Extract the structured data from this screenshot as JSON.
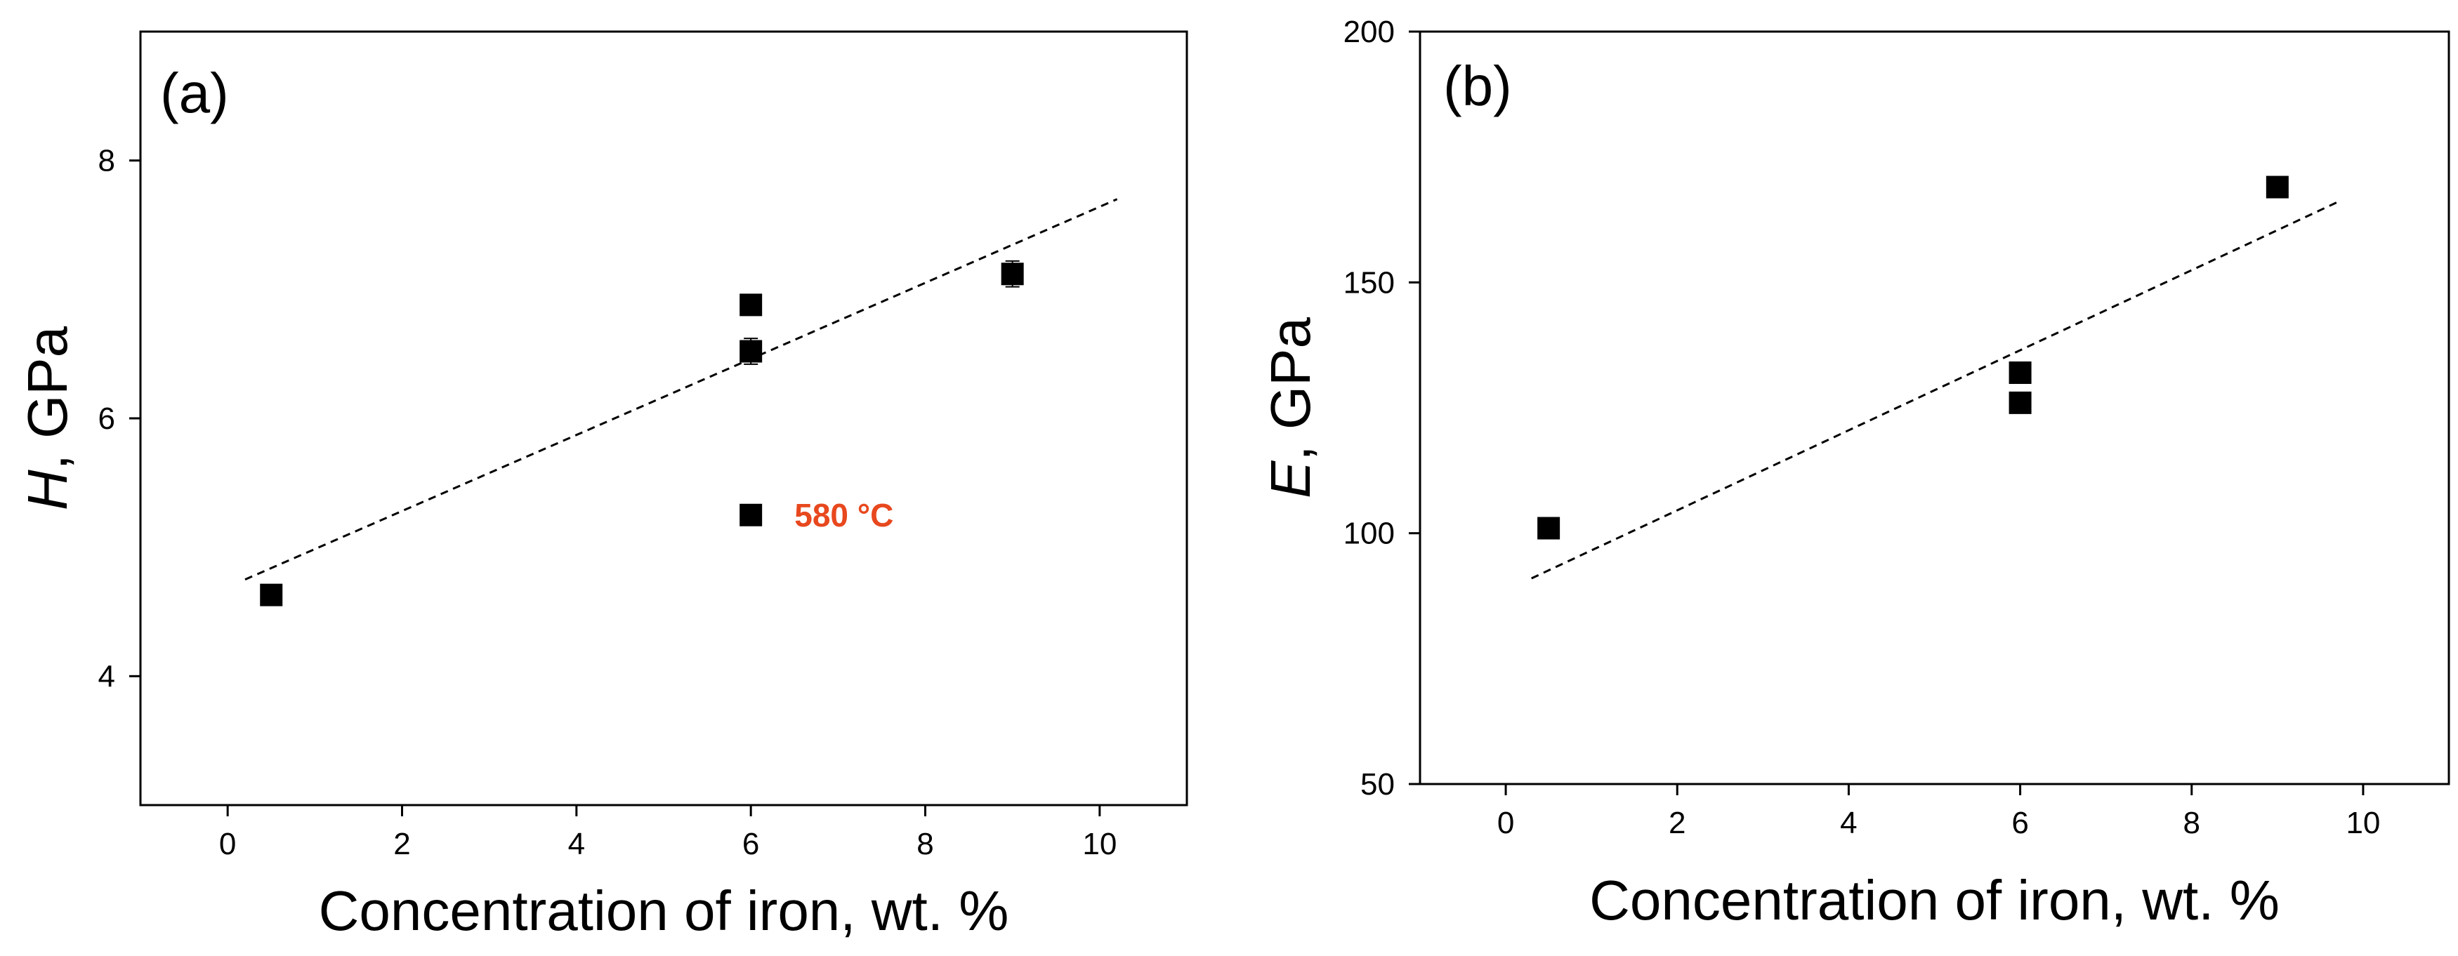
{
  "chart_data": [
    {
      "type": "scatter",
      "panel_label": "(a)",
      "ylabel_symbol": "H",
      "ylabel_rest": ", GPa",
      "xlabel": "Concentration of iron, wt. %",
      "xlim": [
        -1,
        11
      ],
      "ylim": [
        3,
        9
      ],
      "xticks": [
        "0",
        "2",
        "4",
        "6",
        "8",
        "10"
      ],
      "yticks": [
        "4",
        "6",
        "8"
      ],
      "points": [
        {
          "x": 0.5,
          "y": 4.63,
          "err": 0
        },
        {
          "x": 6,
          "y": 6.88,
          "err": 0
        },
        {
          "x": 6,
          "y": 6.52,
          "err": 0.1
        },
        {
          "x": 9,
          "y": 7.12,
          "err": 0.1
        },
        {
          "x": 6,
          "y": 5.25,
          "err": 0
        }
      ],
      "trendline": {
        "x": [
          0.2,
          10.2
        ],
        "y": [
          4.75,
          7.7
        ],
        "style": "dashed"
      },
      "annotations": [
        {
          "text": "580 °C",
          "x": 6.5,
          "y": 5.25,
          "color": "#e8481e"
        }
      ]
    },
    {
      "type": "scatter",
      "panel_label": "(b)",
      "ylabel_symbol": "E",
      "ylabel_rest": ", GPa",
      "xlabel": "Concentration of iron, wt. %",
      "xlim": [
        -1,
        11
      ],
      "ylim": [
        50,
        200
      ],
      "xticks": [
        "0",
        "2",
        "4",
        "6",
        "8",
        "10"
      ],
      "yticks": [
        "50",
        "100",
        "150",
        "200"
      ],
      "points": [
        {
          "x": 0.5,
          "y": 101,
          "err": 0
        },
        {
          "x": 6,
          "y": 132,
          "err": 0
        },
        {
          "x": 6,
          "y": 126,
          "err": 0
        },
        {
          "x": 9,
          "y": 169,
          "err": 0
        }
      ],
      "trendline": {
        "x": [
          0.3,
          9.7
        ],
        "y": [
          91,
          166
        ],
        "style": "dashed"
      },
      "annotations": []
    }
  ]
}
